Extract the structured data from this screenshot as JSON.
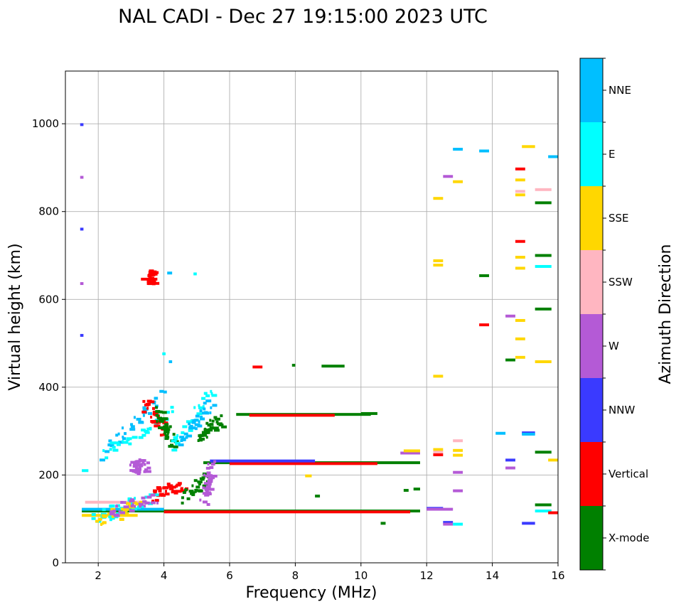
{
  "chart_data": {
    "type": "scatter",
    "title": "NAL CADI - Dec 27 19:15:00 2023 UTC",
    "xlabel": "Frequency (MHz)",
    "ylabel": "Virtual height (km)",
    "xlim": [
      1,
      16
    ],
    "ylim": [
      0,
      1120
    ],
    "xticks": [
      2,
      4,
      6,
      8,
      10,
      12,
      14,
      16
    ],
    "yticks": [
      0,
      200,
      400,
      600,
      800,
      1000
    ],
    "grid": true,
    "colorbar": {
      "label": "Azimuth Direction",
      "categories": [
        {
          "name": "X-mode",
          "color": "#008000"
        },
        {
          "name": "Vertical",
          "color": "#ff0000"
        },
        {
          "name": "NNW",
          "color": "#3a3aff"
        },
        {
          "name": "W",
          "color": "#b45ad6"
        },
        {
          "name": "SSW",
          "color": "#ffb6c1"
        },
        {
          "name": "SSE",
          "color": "#ffd700"
        },
        {
          "name": "E",
          "color": "#00ffff"
        },
        {
          "name": "NNE",
          "color": "#00bfff"
        }
      ]
    },
    "segments": [
      {
        "f0": 1.5,
        "f1": 11.8,
        "h": 118,
        "c": "X-mode"
      },
      {
        "f0": 4.0,
        "f1": 11.5,
        "h": 116,
        "c": "Vertical"
      },
      {
        "f0": 1.5,
        "f1": 4.0,
        "h": 122,
        "c": "NNE"
      },
      {
        "f0": 1.5,
        "f1": 3.2,
        "h": 108,
        "c": "SSE"
      },
      {
        "f0": 1.6,
        "f1": 3.5,
        "h": 138,
        "c": "SSW"
      },
      {
        "f0": 5.2,
        "f1": 11.8,
        "h": 228,
        "c": "X-mode"
      },
      {
        "f0": 6.0,
        "f1": 10.5,
        "h": 226,
        "c": "Vertical"
      },
      {
        "f0": 5.4,
        "f1": 8.6,
        "h": 232,
        "c": "NNW"
      },
      {
        "f0": 6.2,
        "f1": 10.3,
        "h": 338,
        "c": "X-mode"
      },
      {
        "f0": 6.6,
        "f1": 9.2,
        "h": 336,
        "c": "Vertical"
      },
      {
        "f0": 8.8,
        "f1": 9.5,
        "h": 448,
        "c": "X-mode"
      },
      {
        "f0": 3.3,
        "f1": 3.8,
        "h": 646,
        "c": "Vertical"
      },
      {
        "f0": 10.0,
        "f1": 10.5,
        "h": 340,
        "c": "X-mode"
      },
      {
        "f0": 12.2,
        "f1": 12.5,
        "h": 830,
        "c": "SSE"
      },
      {
        "f0": 12.2,
        "f1": 12.5,
        "h": 688,
        "c": "SSE"
      },
      {
        "f0": 12.2,
        "f1": 12.5,
        "h": 678,
        "c": "SSE"
      },
      {
        "f0": 12.2,
        "f1": 12.5,
        "h": 425,
        "c": "SSE"
      },
      {
        "f0": 12.2,
        "f1": 12.5,
        "h": 258,
        "c": "SSE"
      },
      {
        "f0": 12.2,
        "f1": 12.5,
        "h": 252,
        "c": "SSW"
      },
      {
        "f0": 12.2,
        "f1": 12.5,
        "h": 246,
        "c": "Vertical"
      },
      {
        "f0": 12.0,
        "f1": 12.5,
        "h": 124,
        "c": "NNW"
      },
      {
        "f0": 12.0,
        "f1": 12.8,
        "h": 122,
        "c": "W"
      },
      {
        "f0": 12.5,
        "f1": 12.8,
        "h": 92,
        "c": "NNW"
      },
      {
        "f0": 12.5,
        "f1": 12.8,
        "h": 88,
        "c": "W"
      },
      {
        "f0": 12.8,
        "f1": 13.1,
        "h": 88,
        "c": "E"
      },
      {
        "f0": 12.5,
        "f1": 12.8,
        "h": 880,
        "c": "W"
      },
      {
        "f0": 12.8,
        "f1": 13.1,
        "h": 942,
        "c": "NNE"
      },
      {
        "f0": 12.8,
        "f1": 13.1,
        "h": 868,
        "c": "SSE"
      },
      {
        "f0": 12.8,
        "f1": 13.1,
        "h": 278,
        "c": "SSW"
      },
      {
        "f0": 12.8,
        "f1": 13.1,
        "h": 256,
        "c": "SSE"
      },
      {
        "f0": 12.8,
        "f1": 13.1,
        "h": 245,
        "c": "SSE"
      },
      {
        "f0": 12.8,
        "f1": 13.1,
        "h": 206,
        "c": "W"
      },
      {
        "f0": 12.8,
        "f1": 13.1,
        "h": 164,
        "c": "W"
      },
      {
        "f0": 13.6,
        "f1": 13.9,
        "h": 938,
        "c": "NNE"
      },
      {
        "f0": 13.6,
        "f1": 13.9,
        "h": 654,
        "c": "X-mode"
      },
      {
        "f0": 13.6,
        "f1": 13.9,
        "h": 542,
        "c": "Vertical"
      },
      {
        "f0": 14.1,
        "f1": 14.4,
        "h": 295,
        "c": "NNE"
      },
      {
        "f0": 14.4,
        "f1": 14.7,
        "h": 562,
        "c": "W"
      },
      {
        "f0": 14.4,
        "f1": 14.7,
        "h": 462,
        "c": "X-mode"
      },
      {
        "f0": 14.4,
        "f1": 14.7,
        "h": 234,
        "c": "NNW"
      },
      {
        "f0": 14.4,
        "f1": 14.7,
        "h": 216,
        "c": "W"
      },
      {
        "f0": 14.7,
        "f1": 15.0,
        "h": 897,
        "c": "Vertical"
      },
      {
        "f0": 14.7,
        "f1": 15.0,
        "h": 872,
        "c": "SSE"
      },
      {
        "f0": 14.7,
        "f1": 15.0,
        "h": 846,
        "c": "SSW"
      },
      {
        "f0": 14.7,
        "f1": 15.0,
        "h": 838,
        "c": "SSE"
      },
      {
        "f0": 14.7,
        "f1": 15.0,
        "h": 732,
        "c": "Vertical"
      },
      {
        "f0": 14.7,
        "f1": 15.0,
        "h": 696,
        "c": "SSE"
      },
      {
        "f0": 14.7,
        "f1": 15.0,
        "h": 671,
        "c": "SSE"
      },
      {
        "f0": 14.7,
        "f1": 15.0,
        "h": 552,
        "c": "SSE"
      },
      {
        "f0": 14.7,
        "f1": 15.0,
        "h": 510,
        "c": "SSE"
      },
      {
        "f0": 14.7,
        "f1": 15.0,
        "h": 468,
        "c": "SSE"
      },
      {
        "f0": 14.9,
        "f1": 15.3,
        "h": 948,
        "c": "SSE"
      },
      {
        "f0": 14.9,
        "f1": 15.3,
        "h": 296,
        "c": "NNW"
      },
      {
        "f0": 14.9,
        "f1": 15.3,
        "h": 293,
        "c": "NNE"
      },
      {
        "f0": 14.9,
        "f1": 15.3,
        "h": 90,
        "c": "NNW"
      },
      {
        "f0": 15.3,
        "f1": 15.8,
        "h": 850,
        "c": "SSW"
      },
      {
        "f0": 15.3,
        "f1": 15.8,
        "h": 820,
        "c": "X-mode"
      },
      {
        "f0": 15.3,
        "f1": 15.8,
        "h": 700,
        "c": "X-mode"
      },
      {
        "f0": 15.3,
        "f1": 15.8,
        "h": 675,
        "c": "E"
      },
      {
        "f0": 15.3,
        "f1": 15.8,
        "h": 578,
        "c": "X-mode"
      },
      {
        "f0": 15.3,
        "f1": 15.8,
        "h": 458,
        "c": "SSE"
      },
      {
        "f0": 15.3,
        "f1": 15.8,
        "h": 252,
        "c": "X-mode"
      },
      {
        "f0": 15.3,
        "f1": 15.8,
        "h": 132,
        "c": "X-mode"
      },
      {
        "f0": 15.3,
        "f1": 15.8,
        "h": 118,
        "c": "E"
      },
      {
        "f0": 15.7,
        "f1": 16.0,
        "h": 925,
        "c": "NNE"
      },
      {
        "f0": 15.7,
        "f1": 16.0,
        "h": 234,
        "c": "SSE"
      },
      {
        "f0": 15.7,
        "f1": 16.0,
        "h": 114,
        "c": "Vertical"
      },
      {
        "f0": 1.45,
        "f1": 1.55,
        "h": 998,
        "c": "NNW"
      },
      {
        "f0": 1.45,
        "f1": 1.55,
        "h": 878,
        "c": "W"
      },
      {
        "f0": 1.45,
        "f1": 1.55,
        "h": 760,
        "c": "NNW"
      },
      {
        "f0": 1.45,
        "f1": 1.55,
        "h": 636,
        "c": "W"
      },
      {
        "f0": 1.45,
        "f1": 1.55,
        "h": 518,
        "c": "NNW"
      },
      {
        "f0": 1.5,
        "f1": 1.7,
        "h": 210,
        "c": "E"
      },
      {
        "f0": 4.1,
        "f1": 4.25,
        "h": 660,
        "c": "NNE"
      },
      {
        "f0": 4.9,
        "f1": 5.0,
        "h": 658,
        "c": "E"
      },
      {
        "f0": 3.95,
        "f1": 4.05,
        "h": 476,
        "c": "E"
      },
      {
        "f0": 4.15,
        "f1": 4.25,
        "h": 458,
        "c": "NNE"
      },
      {
        "f0": 6.7,
        "f1": 7.0,
        "h": 446,
        "c": "Vertical"
      },
      {
        "f0": 7.9,
        "f1": 8.0,
        "h": 450,
        "c": "X-mode"
      },
      {
        "f0": 10.6,
        "f1": 10.75,
        "h": 90,
        "c": "X-mode"
      },
      {
        "f0": 11.6,
        "f1": 11.8,
        "h": 168,
        "c": "X-mode"
      },
      {
        "f0": 11.3,
        "f1": 11.45,
        "h": 165,
        "c": "X-mode"
      },
      {
        "f0": 8.6,
        "f1": 8.75,
        "h": 152,
        "c": "X-mode"
      },
      {
        "f0": 8.3,
        "f1": 8.5,
        "h": 198,
        "c": "SSE"
      },
      {
        "f0": 11.2,
        "f1": 11.8,
        "h": 250,
        "c": "W"
      },
      {
        "f0": 11.3,
        "f1": 11.8,
        "h": 255,
        "c": "SSE"
      }
    ],
    "tracks": [
      {
        "f0": 2.0,
        "h0": 240,
        "f1": 3.9,
        "h1": 380,
        "c": "NNE"
      },
      {
        "f0": 2.2,
        "h0": 250,
        "f1": 4.2,
        "h1": 340,
        "c": "E"
      },
      {
        "f0": 3.4,
        "h0": 360,
        "f1": 4.0,
        "h1": 300,
        "c": "Vertical"
      },
      {
        "f0": 3.8,
        "h0": 340,
        "f1": 4.2,
        "h1": 270,
        "c": "X-mode"
      },
      {
        "f0": 4.2,
        "h0": 260,
        "f1": 5.6,
        "h1": 420,
        "c": "E"
      },
      {
        "f0": 4.5,
        "h0": 280,
        "f1": 5.4,
        "h1": 360,
        "c": "NNE"
      },
      {
        "f0": 5.0,
        "h0": 285,
        "f1": 5.7,
        "h1": 322,
        "c": "X-mode"
      },
      {
        "f0": 3.0,
        "h0": 214,
        "f1": 3.4,
        "h1": 224,
        "c": "W"
      },
      {
        "f0": 3.6,
        "h0": 650,
        "f1": 3.6,
        "h1": 650,
        "c": "Vertical"
      },
      {
        "f0": 3.6,
        "h0": 155,
        "f1": 4.6,
        "h1": 175,
        "c": "Vertical"
      },
      {
        "f0": 4.6,
        "h0": 150,
        "f1": 5.3,
        "h1": 190,
        "c": "X-mode"
      },
      {
        "f0": 5.2,
        "h0": 145,
        "f1": 5.4,
        "h1": 220,
        "c": "W"
      },
      {
        "f0": 1.8,
        "h0": 100,
        "f1": 3.6,
        "h1": 150,
        "c": "E"
      },
      {
        "f0": 1.9,
        "h0": 95,
        "f1": 3.2,
        "h1": 130,
        "c": "SSE"
      },
      {
        "f0": 2.3,
        "h0": 115,
        "f1": 3.7,
        "h1": 150,
        "c": "W"
      }
    ]
  }
}
